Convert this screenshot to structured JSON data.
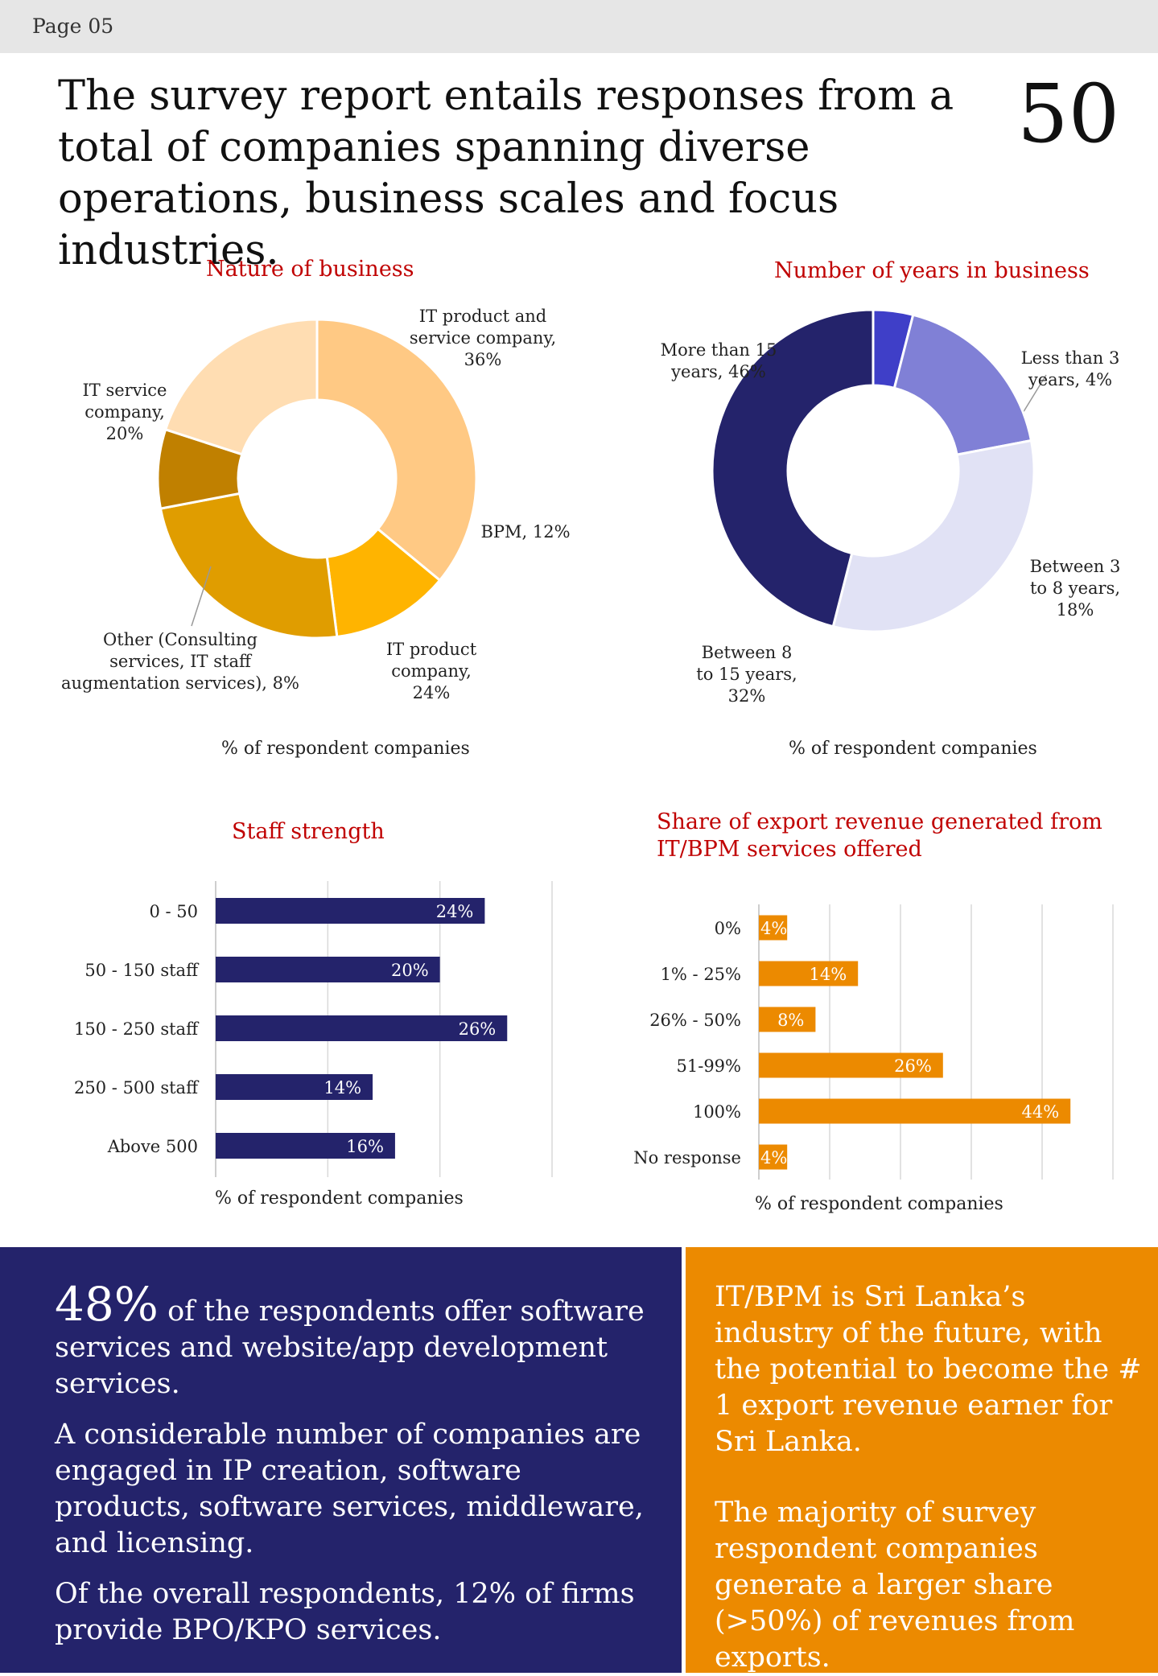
{
  "page_label": "Page 05",
  "headline": {
    "text": "The survey report entails responses from a total of companies spanning diverse operations, business scales and focus industries.",
    "number": "50"
  },
  "chart_data": [
    {
      "type": "pie",
      "title": "Nature of business",
      "note": "% of respondent companies",
      "slices": [
        {
          "label": "IT product and service company, 36%",
          "value": 36,
          "color": "#ffc984"
        },
        {
          "label": "BPM, 12%",
          "value": 12,
          "color": "#ffb400"
        },
        {
          "label": "IT product company, 24%",
          "value": 24,
          "color": "#e09d00"
        },
        {
          "label": "Other (Consulting services, IT staff augmentation services), 8%",
          "value": 8,
          "color": "#c08000"
        },
        {
          "label": "IT service company, 20%",
          "value": 20,
          "color": "#ffddb2"
        }
      ]
    },
    {
      "type": "pie",
      "title": "Number of years in business",
      "note": "% of respondent companies",
      "slices": [
        {
          "label": "Less than 3 years, 4%",
          "value": 4,
          "color": "#3f3fc8"
        },
        {
          "label": "Between 3 to 8 years, 18%",
          "value": 18,
          "color": "#8080d6"
        },
        {
          "label": "Between 8 to 15 years, 32%",
          "value": 32,
          "color": "#e1e2f5"
        },
        {
          "label": "More than 15 years, 46%",
          "value": 46,
          "color": "#24236b"
        }
      ]
    },
    {
      "type": "bar",
      "orientation": "horizontal",
      "title": "Staff strength",
      "note": "% of respondent companies",
      "categories": [
        "0 - 50",
        "50 - 150 staff",
        "150 - 250 staff",
        "250 - 500 staff",
        "Above 500"
      ],
      "values": [
        24,
        20,
        26,
        14,
        16
      ],
      "labels": [
        "24%",
        "20%",
        "26%",
        "14%",
        "16%"
      ],
      "xlim": [
        0,
        30
      ],
      "grid_step": 10,
      "color": "#24236b"
    },
    {
      "type": "bar",
      "orientation": "horizontal",
      "title": "Share of export revenue generated from IT/BPM services offered",
      "note": "% of respondent companies",
      "categories": [
        "0%",
        "1% - 25%",
        "26% - 50%",
        "51-99%",
        "100%",
        "No response"
      ],
      "values": [
        4,
        14,
        8,
        26,
        44,
        4
      ],
      "labels": [
        "4%",
        "14%",
        "8%",
        "26%",
        "44%",
        "4%"
      ],
      "xlim": [
        0,
        50
      ],
      "grid_step": 10,
      "color": "#ec8a00"
    }
  ],
  "panels": {
    "left": {
      "big_stat": "48%",
      "p1_rest": "of the respondents offer software services and website/app development services.",
      "p2": "A considerable number of companies are engaged in IP creation, software products, software services, middleware, and licensing.",
      "p3": "Of the overall respondents, 12% of firms provide BPO/KPO services."
    },
    "right": {
      "p1": "IT/BPM is Sri Lanka’s industry of the future, with the potential to become the # 1 export revenue earner for Sri Lanka.",
      "p2": "The majority of survey respondent companies generate a larger share (>50%) of revenues from exports."
    }
  }
}
